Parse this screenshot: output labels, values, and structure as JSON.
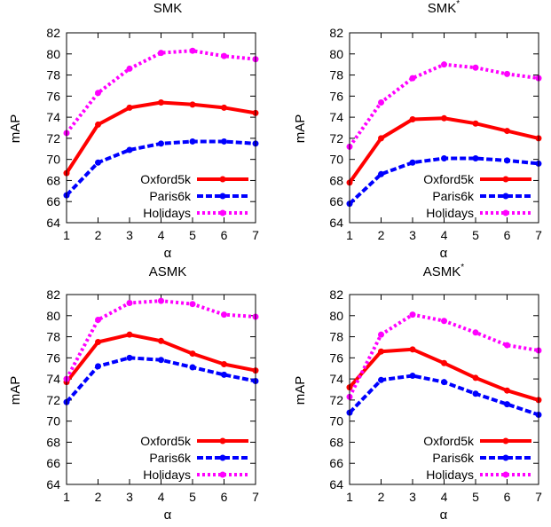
{
  "chart_data": [
    {
      "type": "line",
      "title": "SMK",
      "title_sup": "",
      "xlabel": "α",
      "ylabel": "mAP",
      "x": [
        1,
        2,
        3,
        4,
        5,
        6,
        7
      ],
      "xlim": [
        1,
        7
      ],
      "ylim": [
        64,
        82
      ],
      "yticks": [
        64,
        66,
        68,
        70,
        72,
        74,
        76,
        78,
        80,
        82
      ],
      "grid": false,
      "legend_position": "bottom-right",
      "series": [
        {
          "name": "Oxford5k",
          "color": "#ff0000",
          "style": "solid",
          "values": [
            68.7,
            73.3,
            74.9,
            75.4,
            75.2,
            74.9,
            74.4
          ]
        },
        {
          "name": "Paris6k",
          "color": "#0000ff",
          "style": "dashed",
          "values": [
            66.6,
            69.7,
            70.9,
            71.5,
            71.7,
            71.7,
            71.5
          ]
        },
        {
          "name": "Holidays",
          "color": "#ff00ff",
          "style": "dotted",
          "values": [
            72.5,
            76.3,
            78.6,
            80.1,
            80.3,
            79.8,
            79.5
          ]
        }
      ]
    },
    {
      "type": "line",
      "title": "SMK",
      "title_sup": "*",
      "xlabel": "α",
      "ylabel": "mAP",
      "x": [
        1,
        2,
        3,
        4,
        5,
        6,
        7
      ],
      "xlim": [
        1,
        7
      ],
      "ylim": [
        64,
        82
      ],
      "yticks": [
        64,
        66,
        68,
        70,
        72,
        74,
        76,
        78,
        80,
        82
      ],
      "grid": false,
      "legend_position": "bottom-right",
      "series": [
        {
          "name": "Oxford5k",
          "color": "#ff0000",
          "style": "solid",
          "values": [
            67.8,
            72.0,
            73.8,
            73.9,
            73.4,
            72.7,
            72.0
          ]
        },
        {
          "name": "Paris6k",
          "color": "#0000ff",
          "style": "dashed",
          "values": [
            65.8,
            68.6,
            69.7,
            70.1,
            70.1,
            69.9,
            69.6
          ]
        },
        {
          "name": "Holidays",
          "color": "#ff00ff",
          "style": "dotted",
          "values": [
            71.2,
            75.4,
            77.7,
            79.0,
            78.7,
            78.1,
            77.7
          ]
        }
      ]
    },
    {
      "type": "line",
      "title": "ASMK",
      "title_sup": "",
      "xlabel": "α",
      "ylabel": "mAP",
      "x": [
        1,
        2,
        3,
        4,
        5,
        6,
        7
      ],
      "xlim": [
        1,
        7
      ],
      "ylim": [
        64,
        82
      ],
      "yticks": [
        64,
        66,
        68,
        70,
        72,
        74,
        76,
        78,
        80,
        82
      ],
      "grid": false,
      "legend_position": "bottom-right",
      "series": [
        {
          "name": "Oxford5k",
          "color": "#ff0000",
          "style": "solid",
          "values": [
            73.7,
            77.5,
            78.2,
            77.6,
            76.4,
            75.4,
            74.8
          ]
        },
        {
          "name": "Paris6k",
          "color": "#0000ff",
          "style": "dashed",
          "values": [
            71.8,
            75.2,
            76.0,
            75.8,
            75.1,
            74.4,
            73.8
          ]
        },
        {
          "name": "Holidays",
          "color": "#ff00ff",
          "style": "dotted",
          "values": [
            74.0,
            79.6,
            81.2,
            81.4,
            81.1,
            80.1,
            79.9
          ]
        }
      ]
    },
    {
      "type": "line",
      "title": "ASMK",
      "title_sup": "*",
      "xlabel": "α",
      "ylabel": "mAP",
      "x": [
        1,
        2,
        3,
        4,
        5,
        6,
        7
      ],
      "xlim": [
        1,
        7
      ],
      "ylim": [
        64,
        82
      ],
      "yticks": [
        64,
        66,
        68,
        70,
        72,
        74,
        76,
        78,
        80,
        82
      ],
      "grid": false,
      "legend_position": "bottom-right",
      "series": [
        {
          "name": "Oxford5k",
          "color": "#ff0000",
          "style": "solid",
          "values": [
            73.2,
            76.6,
            76.8,
            75.5,
            74.1,
            72.9,
            72.0
          ]
        },
        {
          "name": "Paris6k",
          "color": "#0000ff",
          "style": "dashed",
          "values": [
            70.8,
            73.9,
            74.3,
            73.7,
            72.6,
            71.6,
            70.6
          ]
        },
        {
          "name": "Holidays",
          "color": "#ff00ff",
          "style": "dotted",
          "values": [
            72.3,
            78.2,
            80.1,
            79.5,
            78.4,
            77.2,
            76.7
          ]
        }
      ]
    }
  ]
}
